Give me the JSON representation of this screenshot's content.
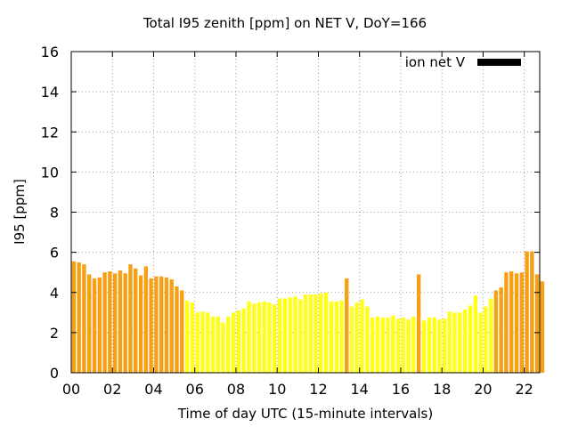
{
  "chart_data": {
    "type": "bar",
    "title": "Total I95 zenith [ppm] on NET V, DoY=166",
    "xlabel": "Time of day UTC (15-minute intervals)",
    "ylabel": "I95 [ppm]",
    "xlim": [
      0,
      22.75
    ],
    "ylim": [
      0,
      16
    ],
    "x_ticks": [
      "00",
      "02",
      "04",
      "06",
      "08",
      "10",
      "12",
      "14",
      "16",
      "18",
      "20",
      "22"
    ],
    "y_ticks": [
      "0",
      "2",
      "4",
      "6",
      "8",
      "10",
      "12",
      "14",
      "16"
    ],
    "grid": true,
    "legend_position": "top-right",
    "series": [
      {
        "name": "ion net V",
        "legend_color": "#000000",
        "bar_colors": {
          "orange": "#f5a015",
          "yellow": "#ffff19"
        },
        "values": [
          5.55,
          5.5,
          5.4,
          4.9,
          4.7,
          4.75,
          5.0,
          5.05,
          4.95,
          5.1,
          4.95,
          5.4,
          5.2,
          4.85,
          5.3,
          4.7,
          4.8,
          4.8,
          4.75,
          4.65,
          4.3,
          4.1,
          3.6,
          3.5,
          3.0,
          3.05,
          3.0,
          2.8,
          2.8,
          2.5,
          2.8,
          3.0,
          3.1,
          3.2,
          3.55,
          3.45,
          3.5,
          3.55,
          3.5,
          3.4,
          3.7,
          3.7,
          3.75,
          3.8,
          3.65,
          3.9,
          3.9,
          3.9,
          3.95,
          4.0,
          3.55,
          3.55,
          3.6,
          4.7,
          3.3,
          3.5,
          3.65,
          3.3,
          2.75,
          2.8,
          2.75,
          2.75,
          2.85,
          2.7,
          2.75,
          2.65,
          2.8,
          4.9,
          2.6,
          2.75,
          2.75,
          2.65,
          2.7,
          3.05,
          3.0,
          3.0,
          3.15,
          3.35,
          3.85,
          3.0,
          3.3,
          3.7,
          4.1,
          4.25,
          5.0,
          5.05,
          4.95,
          5.0,
          6.05,
          6.05,
          4.9,
          4.55
        ],
        "color_class": [
          "orange",
          "orange",
          "orange",
          "orange",
          "orange",
          "orange",
          "orange",
          "orange",
          "orange",
          "orange",
          "orange",
          "orange",
          "orange",
          "orange",
          "orange",
          "orange",
          "orange",
          "orange",
          "orange",
          "orange",
          "orange",
          "orange",
          "yellow",
          "yellow",
          "yellow",
          "yellow",
          "yellow",
          "yellow",
          "yellow",
          "yellow",
          "yellow",
          "yellow",
          "yellow",
          "yellow",
          "yellow",
          "yellow",
          "yellow",
          "yellow",
          "yellow",
          "yellow",
          "yellow",
          "yellow",
          "yellow",
          "yellow",
          "yellow",
          "yellow",
          "yellow",
          "yellow",
          "yellow",
          "yellow",
          "yellow",
          "yellow",
          "yellow",
          "orange",
          "yellow",
          "yellow",
          "yellow",
          "yellow",
          "yellow",
          "yellow",
          "yellow",
          "yellow",
          "yellow",
          "yellow",
          "yellow",
          "yellow",
          "yellow",
          "orange",
          "yellow",
          "yellow",
          "yellow",
          "yellow",
          "yellow",
          "yellow",
          "yellow",
          "yellow",
          "yellow",
          "yellow",
          "yellow",
          "yellow",
          "yellow",
          "yellow",
          "orange",
          "orange",
          "orange",
          "orange",
          "orange",
          "orange",
          "orange",
          "orange",
          "orange",
          "orange"
        ]
      }
    ]
  }
}
